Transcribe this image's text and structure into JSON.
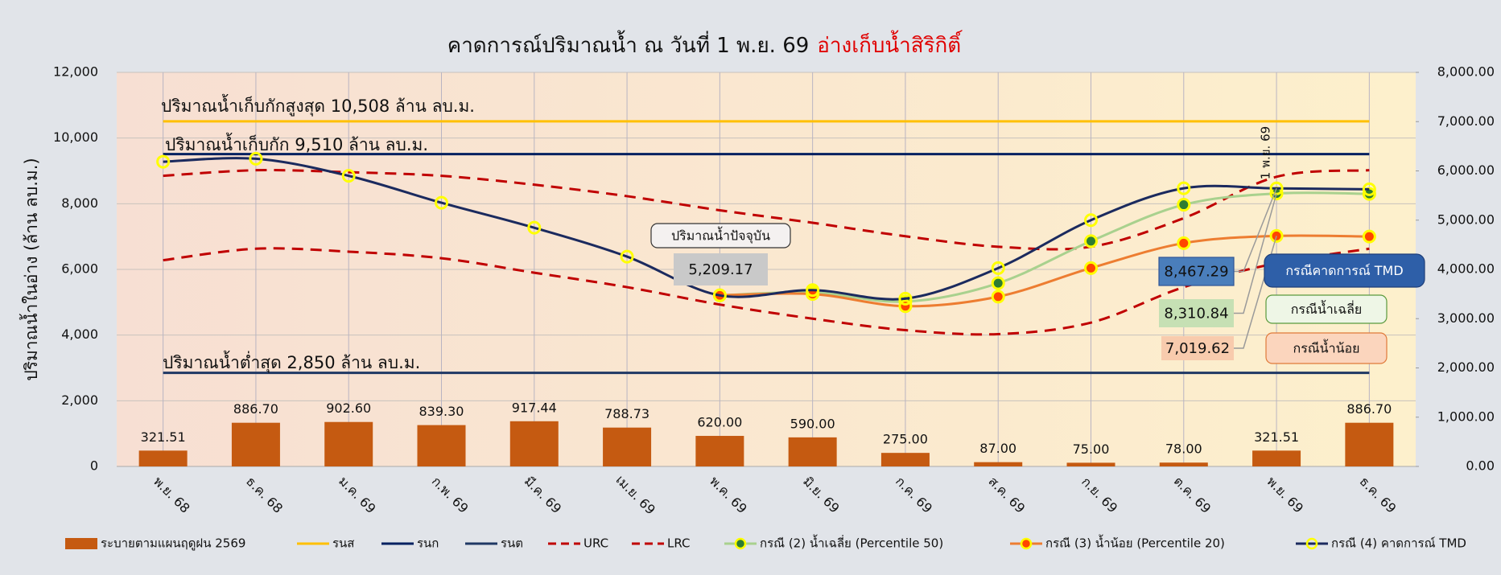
{
  "chart_data": {
    "type": "combo",
    "title": "คาดการณ์ปริมาณน้ำ ณ วันที่ 1 พ.ย. 69",
    "title_highlight": "อ่างเก็บน้ำสิริกิติ์",
    "title_highlight_color": "#e00000",
    "y_label": "ปริมาณน้ำในอ่าง (ล้าน ลบ.ม.)",
    "categories": [
      "พ.ย. 68",
      "ธ.ค. 68",
      "ม.ค. 69",
      "ก.พ. 69",
      "มี.ค. 69",
      "เม.ย. 69",
      "พ.ค. 69",
      "มิ.ย. 69",
      "ก.ค. 69",
      "ส.ค. 69",
      "ก.ย. 69",
      "ต.ค. 69",
      "พ.ย. 69",
      "ธ.ค. 69"
    ],
    "ylim": [
      0,
      12000
    ],
    "yticks": [
      0,
      {
        "value": 2000,
        "label": "2,000"
      },
      {
        "value": 4000,
        "label": "4,000"
      },
      {
        "value": 6000,
        "label": "6,000"
      },
      {
        "value": 8000,
        "label": "8,000"
      },
      {
        "value": 10000,
        "label": "10,000"
      },
      {
        "value": 12000,
        "label": "12,000"
      }
    ],
    "y2lim": [
      0,
      8000
    ],
    "y2ticks": [
      {
        "value": 0,
        "label": "0.00"
      },
      {
        "value": 1000,
        "label": "1,000.00"
      },
      {
        "value": 2000,
        "label": "2,000.00"
      },
      {
        "value": 3000,
        "label": "3,000.00"
      },
      {
        "value": 4000,
        "label": "4,000.00"
      },
      {
        "value": 5000,
        "label": "5,000.00"
      },
      {
        "value": 6000,
        "label": "6,000.00"
      },
      {
        "value": 7000,
        "label": "7,000.00"
      },
      {
        "value": 8000,
        "label": "8,000.00"
      }
    ],
    "grid": true,
    "series": [
      {
        "name": "ระบายตามแผนฤดูฝน 2569",
        "type": "bar",
        "axis": "y2",
        "color": "#c55a11",
        "values": [
          321.51,
          886.7,
          902.6,
          839.3,
          917.44,
          788.73,
          620.0,
          590.0,
          275.0,
          87.0,
          75.0,
          78.0,
          321.51,
          886.7
        ],
        "value_labels": [
          "321.51",
          "886.70",
          "902.60",
          "839.30",
          "917.44",
          "788.73",
          "620.00",
          "590.00",
          "275.00",
          "87.00",
          "75.00",
          "78.00",
          "321.51",
          "886.70"
        ]
      },
      {
        "name": "รนส",
        "type": "line",
        "color": "#ffc000",
        "line_style": "solid",
        "smooth": false,
        "values": [
          10508,
          10508,
          10508,
          10508,
          10508,
          10508,
          10508,
          10508,
          10508,
          10508,
          10508,
          10508,
          10508,
          10508
        ]
      },
      {
        "name": "รนก",
        "type": "line",
        "color": "#002060",
        "line_style": "solid",
        "smooth": false,
        "values": [
          9510,
          9510,
          9510,
          9510,
          9510,
          9510,
          9510,
          9510,
          9510,
          9510,
          9510,
          9510,
          9510,
          9510
        ]
      },
      {
        "name": "รนต",
        "type": "line",
        "color": "#1f3864",
        "line_style": "solid",
        "smooth": false,
        "values": [
          2850,
          2850,
          2850,
          2850,
          2850,
          2850,
          2850,
          2850,
          2850,
          2850,
          2850,
          2850,
          2850,
          2850
        ]
      },
      {
        "name": "URC",
        "type": "line",
        "color": "#c00000",
        "line_style": "dashed",
        "smooth": true,
        "values": [
          8850,
          9020,
          8960,
          8850,
          8580,
          8230,
          7800,
          7420,
          7010,
          6690,
          6690,
          7560,
          8820,
          9020
        ]
      },
      {
        "name": "LRC",
        "type": "line",
        "color": "#c00000",
        "line_style": "dashed",
        "smooth": true,
        "values": [
          6280,
          6630,
          6540,
          6340,
          5900,
          5460,
          4930,
          4500,
          4150,
          4030,
          4380,
          5460,
          6190,
          6630
        ]
      },
      {
        "name": "กรณี (2) น้ำเฉลี่ย  (Percentile 50)",
        "type": "line",
        "color": "#a9d18e",
        "line_style": "solid",
        "smooth": true,
        "marker_fill": "#2e7d32",
        "marker_edge": "#ffff00",
        "values": [
          null,
          null,
          null,
          null,
          null,
          null,
          5209.17,
          5300,
          5020,
          5580,
          6860,
          7970,
          8310.84,
          8300
        ]
      },
      {
        "name": "กรณี (3) น้ำน้อย (Percentile 20)",
        "type": "line",
        "color": "#ed7d31",
        "line_style": "solid",
        "smooth": true,
        "marker_fill": "#ff4500",
        "marker_edge": "#ffff00",
        "values": [
          null,
          null,
          null,
          null,
          null,
          null,
          5209.17,
          5250,
          4880,
          5170,
          6040,
          6800,
          7019.62,
          7000
        ]
      },
      {
        "name": "กรณี (4) คาดการณ์ TMD",
        "type": "line",
        "color": "#1b2a5e",
        "line_style": "solid",
        "smooth": true,
        "marker_fill": "none",
        "marker_edge": "#ffff00",
        "values": [
          9280,
          9370,
          8850,
          8030,
          7270,
          6390,
          5209.17,
          5370,
          5110,
          6040,
          7500,
          8470,
          8467.29,
          8440
        ]
      }
    ],
    "annotations": [
      {
        "text": "ปริมาณน้ำเก็บกักสูงสุด 10,508 ล้าน ลบ.ม."
      },
      {
        "text": "ปริมาณน้ำเก็บกัก 9,510 ล้าน ลบ.ม."
      },
      {
        "text": "ปริมาณน้ำต่ำสุด 2,850 ล้าน ลบ.ม."
      },
      {
        "text": "ปริมาณน้ำปัจจุบัน"
      },
      {
        "text": "5,209.17"
      },
      {
        "text": "1 พ.ย. 69"
      },
      {
        "text": "8,467.29"
      },
      {
        "text": "8,310.84"
      },
      {
        "text": "7,019.62"
      },
      {
        "text": "กรณีคาดการณ์ TMD"
      },
      {
        "text": "กรณีน้ำเฉลี่ย"
      },
      {
        "text": "กรณีน้ำน้อย"
      }
    ]
  }
}
